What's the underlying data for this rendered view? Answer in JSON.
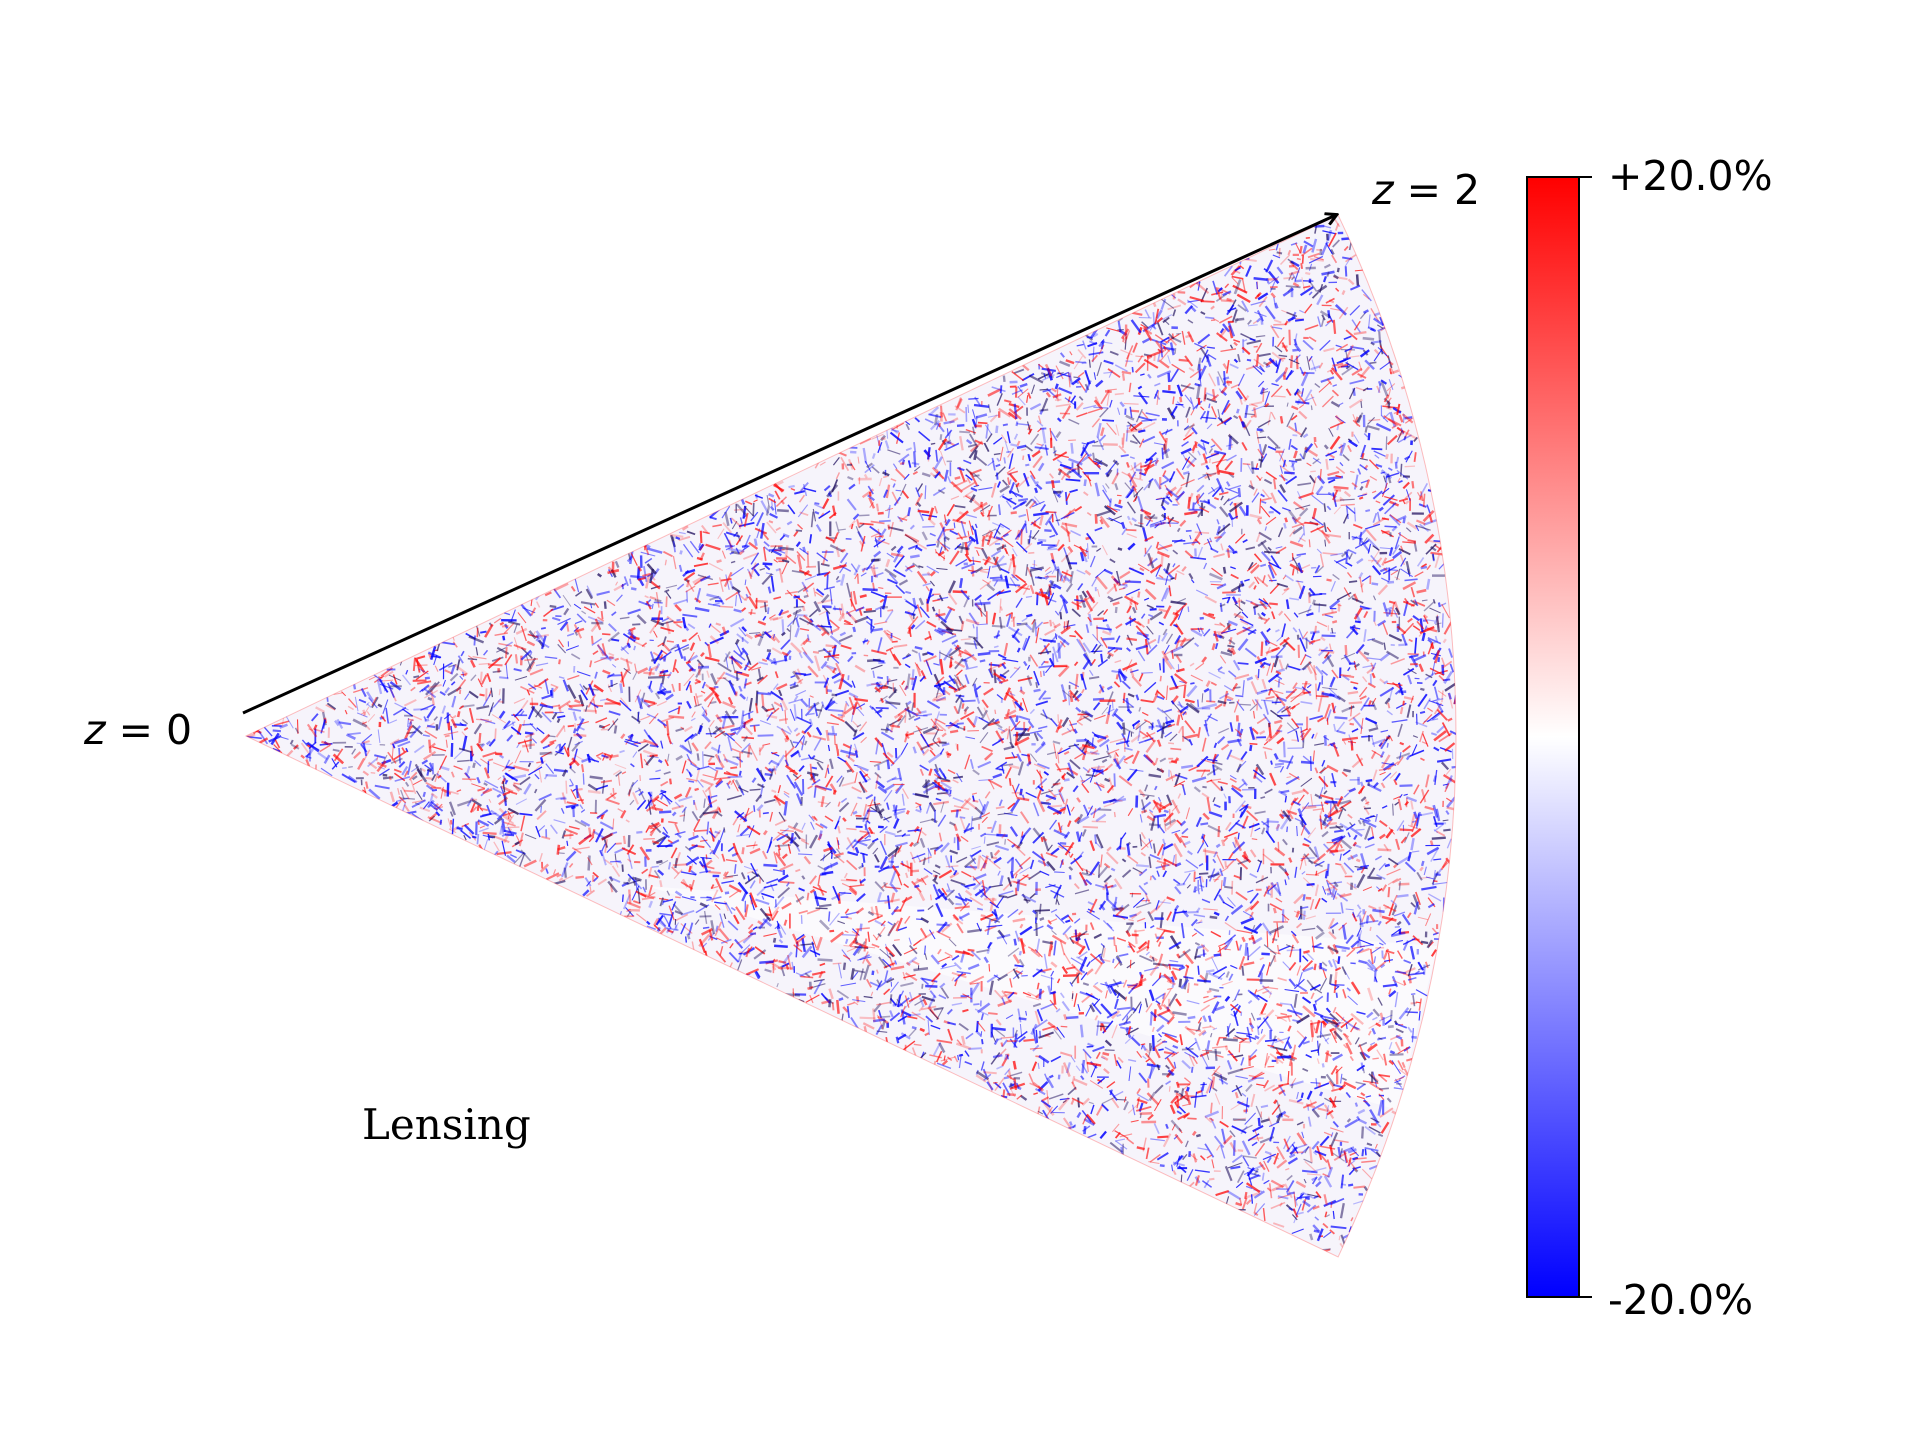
{
  "chart_data": {
    "type": "heatmap",
    "projection": "lightcone wedge",
    "panel_label": "Lensing",
    "start_label": {
      "var": "z",
      "eq": " = ",
      "value": "0"
    },
    "end_label": {
      "var": "z",
      "eq": " = ",
      "value": "2"
    },
    "z_range": [
      0,
      2
    ],
    "colorbar": {
      "colormap": "bwr",
      "max_label": "+20.0%",
      "min_label": "-20.0%",
      "range": [
        -20.0,
        20.0
      ],
      "units": "%"
    },
    "colors": {
      "negative": "#0000ff",
      "zero": "#ffffff",
      "positive": "#ff0000"
    }
  }
}
